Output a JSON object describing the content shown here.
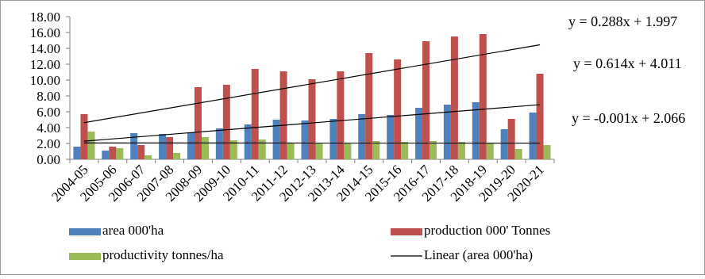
{
  "chart_data": {
    "type": "bar",
    "categories": [
      "2004-05",
      "2005-06",
      "2006-07",
      "2007-08",
      "2008-09",
      "2009-10",
      "2010-11",
      "2011-12",
      "2012-13",
      "2013-14",
      "2014-15",
      "2015-16",
      "2016-17",
      "2017-18",
      "2018-19",
      "2019-20",
      "2020-21"
    ],
    "series": [
      {
        "name": "area 000'ha",
        "color": "#4f81bd",
        "values": [
          1.6,
          1.1,
          3.3,
          3.2,
          3.4,
          3.9,
          4.4,
          5.0,
          4.9,
          5.1,
          5.7,
          5.6,
          6.5,
          6.9,
          7.2,
          3.8,
          5.9
        ]
      },
      {
        "name": "production 000' Tonnes",
        "color": "#c0504d",
        "values": [
          5.7,
          1.6,
          1.8,
          2.8,
          9.1,
          9.4,
          11.4,
          11.1,
          10.1,
          11.1,
          13.4,
          12.6,
          14.9,
          15.5,
          15.8,
          5.1,
          10.8
        ]
      },
      {
        "name": "productivity tonnes/ha",
        "color": "#9bbb59",
        "values": [
          3.5,
          1.4,
          0.5,
          0.8,
          2.8,
          2.4,
          2.5,
          2.1,
          2.0,
          2.1,
          2.3,
          2.2,
          2.3,
          2.2,
          2.1,
          1.3,
          1.8
        ]
      }
    ],
    "trendlines": [
      {
        "name": "Linear (area 000'ha)",
        "label": "y = 0.288x + 1.997",
        "slope": 0.288,
        "intercept": 1.997
      },
      {
        "label": "y = 0.614x + 4.011",
        "slope": 0.614,
        "intercept": 4.011
      },
      {
        "label": "y = -0.001x + 2.066",
        "slope": -0.001,
        "intercept": 2.066
      }
    ],
    "yticks": [
      "0.00",
      "2.00",
      "4.00",
      "6.00",
      "8.00",
      "10.00",
      "12.00",
      "14.00",
      "16.00",
      "18.00"
    ],
    "ylim": [
      0,
      18
    ],
    "grid": false,
    "legend_position": "bottom"
  }
}
